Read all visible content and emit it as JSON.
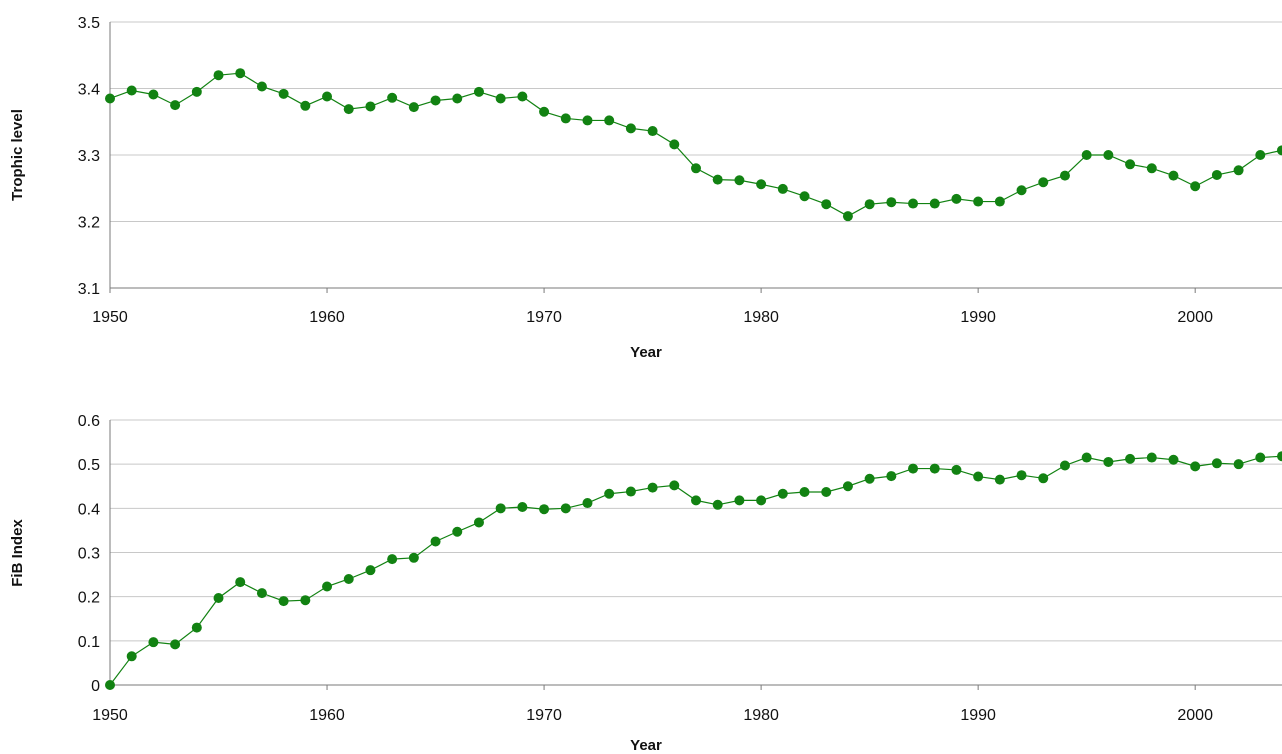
{
  "colors": {
    "series": "#128212",
    "grid": "#c8c8c8",
    "axis": "#7a7a7a"
  },
  "chart_data": [
    {
      "type": "line",
      "title": "",
      "xlabel": "Year",
      "ylabel": "Trophic level",
      "grid": true,
      "xlim": [
        1950,
        2004
      ],
      "ylim": [
        3.1,
        3.5
      ],
      "xticks": [
        "1950",
        "1960",
        "1970",
        "1980",
        "1990",
        "2000"
      ],
      "yticks": [
        "3.1",
        "3.2",
        "3.3",
        "3.4",
        "3.5"
      ],
      "x": [
        1950,
        1951,
        1952,
        1953,
        1954,
        1955,
        1956,
        1957,
        1958,
        1959,
        1960,
        1961,
        1962,
        1963,
        1964,
        1965,
        1966,
        1967,
        1968,
        1969,
        1970,
        1971,
        1972,
        1973,
        1974,
        1975,
        1976,
        1977,
        1978,
        1979,
        1980,
        1981,
        1982,
        1983,
        1984,
        1985,
        1986,
        1987,
        1988,
        1989,
        1990,
        1991,
        1992,
        1993,
        1994,
        1995,
        1996,
        1997,
        1998,
        1999,
        2000,
        2001,
        2002,
        2003,
        2004
      ],
      "series": [
        {
          "values": [
            3.385,
            3.397,
            3.391,
            3.375,
            3.395,
            3.42,
            3.423,
            3.403,
            3.392,
            3.374,
            3.388,
            3.369,
            3.373,
            3.386,
            3.372,
            3.382,
            3.385,
            3.395,
            3.385,
            3.388,
            3.365,
            3.355,
            3.352,
            3.352,
            3.34,
            3.336,
            3.316,
            3.28,
            3.263,
            3.262,
            3.256,
            3.249,
            3.238,
            3.226,
            3.208,
            3.226,
            3.229,
            3.227,
            3.227,
            3.234,
            3.23,
            3.23,
            3.247,
            3.259,
            3.269,
            3.3,
            3.3,
            3.286,
            3.28,
            3.269,
            3.253,
            3.27,
            3.277,
            3.3,
            3.307
          ]
        }
      ]
    },
    {
      "type": "line",
      "title": "",
      "xlabel": "Year",
      "ylabel": "FiB Index",
      "grid": true,
      "xlim": [
        1950,
        2004
      ],
      "ylim": [
        0,
        0.6
      ],
      "xticks": [
        "1950",
        "1960",
        "1970",
        "1980",
        "1990",
        "2000"
      ],
      "yticks": [
        "0",
        "0.1",
        "0.2",
        "0.3",
        "0.4",
        "0.5",
        "0.6"
      ],
      "x": [
        1950,
        1951,
        1952,
        1953,
        1954,
        1955,
        1956,
        1957,
        1958,
        1959,
        1960,
        1961,
        1962,
        1963,
        1964,
        1965,
        1966,
        1967,
        1968,
        1969,
        1970,
        1971,
        1972,
        1973,
        1974,
        1975,
        1976,
        1977,
        1978,
        1979,
        1980,
        1981,
        1982,
        1983,
        1984,
        1985,
        1986,
        1987,
        1988,
        1989,
        1990,
        1991,
        1992,
        1993,
        1994,
        1995,
        1996,
        1997,
        1998,
        1999,
        2000,
        2001,
        2002,
        2003,
        2004
      ],
      "series": [
        {
          "values": [
            0.0,
            0.065,
            0.097,
            0.092,
            0.13,
            0.197,
            0.233,
            0.208,
            0.19,
            0.192,
            0.223,
            0.24,
            0.26,
            0.285,
            0.288,
            0.325,
            0.347,
            0.368,
            0.4,
            0.403,
            0.398,
            0.4,
            0.412,
            0.433,
            0.438,
            0.447,
            0.452,
            0.418,
            0.408,
            0.418,
            0.418,
            0.433,
            0.437,
            0.437,
            0.45,
            0.467,
            0.473,
            0.49,
            0.49,
            0.487,
            0.472,
            0.465,
            0.475,
            0.468,
            0.497,
            0.515,
            0.505,
            0.512,
            0.515,
            0.51,
            0.495,
            0.502,
            0.5,
            0.515,
            0.518
          ]
        }
      ]
    }
  ]
}
